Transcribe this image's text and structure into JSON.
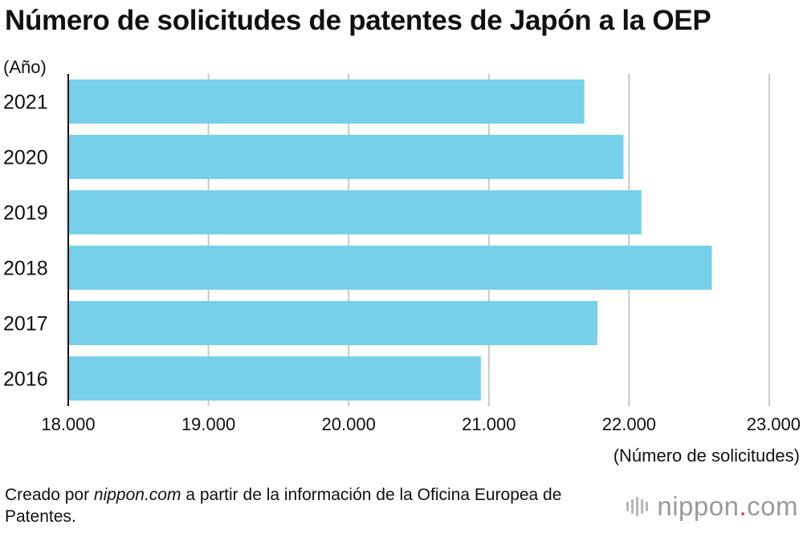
{
  "title": "Número de solicitudes de patentes de Japón a la OEP",
  "source": {
    "prefix": "Creado por ",
    "site": "nippon.com",
    "suffix": " a partir de la información de la Oficina Europea de Patentes."
  },
  "brand": {
    "name": "nippon",
    "dot": ".",
    "tld": "com"
  },
  "colors": {
    "bar": "#76D0EA",
    "grid": "#c8c8c8",
    "axis": "#111111",
    "text": "#111111"
  },
  "chart_data": {
    "type": "bar",
    "orientation": "horizontal",
    "title": "Número de solicitudes de patentes de Japón a la OEP",
    "ylabel": "(Año)",
    "xlabel": "(Número de solicitudes)",
    "categories": [
      "2021",
      "2020",
      "2019",
      "2018",
      "2017",
      "2016"
    ],
    "values": [
      21681,
      21960,
      22088,
      22590,
      21774,
      20943
    ],
    "xlim": [
      18000,
      23000
    ],
    "xticks": [
      18000,
      19000,
      20000,
      21000,
      22000,
      23000
    ],
    "xtick_labels": [
      "18.000",
      "19.000",
      "20.000",
      "21.000",
      "22.000",
      "23.000"
    ],
    "grid": true
  }
}
